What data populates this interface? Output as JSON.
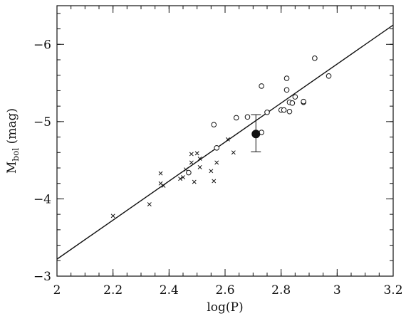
{
  "chart_data": {
    "type": "scatter",
    "xlabel": "log(P)",
    "ylabel": "M",
    "ylabel_sub": "bol",
    "ylabel_suffix": " (mag)",
    "xlim": [
      2.0,
      3.2
    ],
    "ylim": [
      -3,
      -6.5
    ],
    "y_axis_inverted": true,
    "x_ticks": [
      2.0,
      2.2,
      2.4,
      2.6,
      2.8,
      3.0,
      3.2
    ],
    "x_tick_labels": [
      "2",
      "2.2",
      "2.4",
      "2.6",
      "2.8",
      "3",
      "3.2"
    ],
    "y_ticks": [
      -3,
      -4,
      -5,
      -6
    ],
    "y_tick_labels": [
      "−3",
      "−4",
      "−5",
      "−6"
    ],
    "grid": false,
    "colors": {
      "ink": "#111111",
      "open_fill": "#ffffff"
    },
    "series": [
      {
        "marker": "x",
        "points": [
          [
            2.2,
            -3.78
          ],
          [
            2.37,
            -4.2
          ],
          [
            2.37,
            -4.33
          ],
          [
            2.38,
            -4.17
          ],
          [
            2.44,
            -4.26
          ],
          [
            2.45,
            -4.28
          ],
          [
            2.46,
            -4.38
          ],
          [
            2.48,
            -4.47
          ],
          [
            2.48,
            -4.58
          ],
          [
            2.49,
            -4.22
          ],
          [
            2.5,
            -4.59
          ],
          [
            2.51,
            -4.41
          ],
          [
            2.51,
            -4.52
          ],
          [
            2.55,
            -4.36
          ],
          [
            2.56,
            -4.23
          ],
          [
            2.57,
            -4.47
          ],
          [
            2.61,
            -4.77
          ],
          [
            2.63,
            -4.6
          ],
          [
            2.33,
            -3.93
          ]
        ]
      },
      {
        "marker": "open_circle",
        "points": [
          [
            2.47,
            -4.34
          ],
          [
            2.56,
            -4.96
          ],
          [
            2.57,
            -4.66
          ],
          [
            2.64,
            -5.05
          ],
          [
            2.68,
            -5.06
          ],
          [
            2.71,
            -4.84
          ],
          [
            2.73,
            -4.86
          ],
          [
            2.73,
            -5.46
          ],
          [
            2.75,
            -5.12
          ],
          [
            2.8,
            -5.15
          ],
          [
            2.81,
            -5.15
          ],
          [
            2.82,
            -5.41
          ],
          [
            2.82,
            -5.56
          ],
          [
            2.83,
            -5.13
          ],
          [
            2.83,
            -5.25
          ],
          [
            2.84,
            -5.24
          ],
          [
            2.85,
            -5.32
          ],
          [
            2.88,
            -5.25
          ],
          [
            2.88,
            -5.26
          ],
          [
            2.92,
            -5.82
          ],
          [
            2.97,
            -5.59
          ]
        ]
      },
      {
        "marker": "filled_circle",
        "points": [
          [
            2.71,
            -4.84
          ]
        ],
        "error": [
          [
            -4.61,
            -5.09
          ]
        ]
      }
    ],
    "fit_line": {
      "x": [
        2.0,
        3.2
      ],
      "y": [
        -3.22,
        -6.25
      ]
    }
  }
}
